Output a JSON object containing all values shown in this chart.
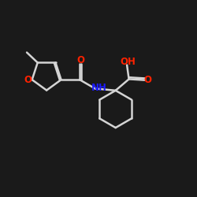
{
  "background_color": "#1a1a1a",
  "bond_color": "#000000",
  "line_color": "#d4d4d4",
  "oxygen_color": "#ff2200",
  "nitrogen_color": "#1a1aff",
  "label_NH": "NH",
  "label_O1": "O",
  "label_O2": "O",
  "label_O3": "O",
  "label_OH": "OH",
  "figsize": [
    2.5,
    2.5
  ],
  "dpi": 100
}
